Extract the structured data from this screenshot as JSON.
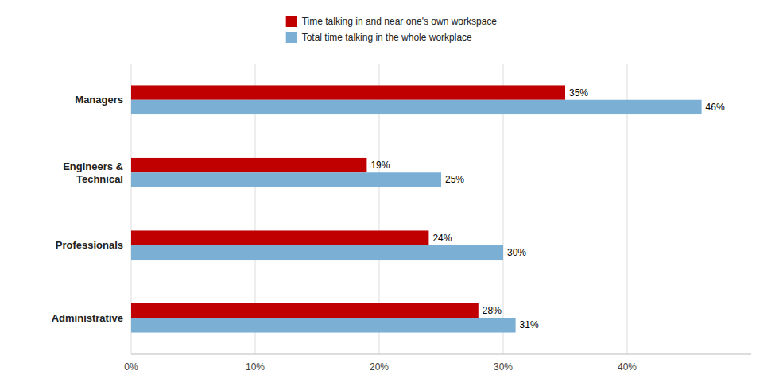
{
  "chart_data": {
    "type": "bar",
    "orientation": "horizontal",
    "categories": [
      "Administrative",
      "Professionals",
      "Engineers &\nTechnical",
      "Managers"
    ],
    "series": [
      {
        "name": "Time talking in and near one's own workspace",
        "color": "#C00000",
        "values": [
          28,
          24,
          19,
          35
        ],
        "value_labels": [
          "28%",
          "24%",
          "19%",
          "35%"
        ]
      },
      {
        "name": "Total time talking in the whole workplace",
        "color": "#7BAFD4",
        "values": [
          31,
          30,
          25,
          46
        ],
        "value_labels": [
          "31%",
          "30%",
          "25%",
          "46%"
        ]
      }
    ],
    "xlim": [
      0,
      50
    ],
    "xticks": [
      {
        "value": 0,
        "label": "0%"
      },
      {
        "value": 10,
        "label": "10%"
      },
      {
        "value": 20,
        "label": "20%"
      },
      {
        "value": 30,
        "label": "30%"
      },
      {
        "value": 40,
        "label": "40%"
      }
    ],
    "grid": true,
    "legend": "top",
    "data_labels": true
  }
}
